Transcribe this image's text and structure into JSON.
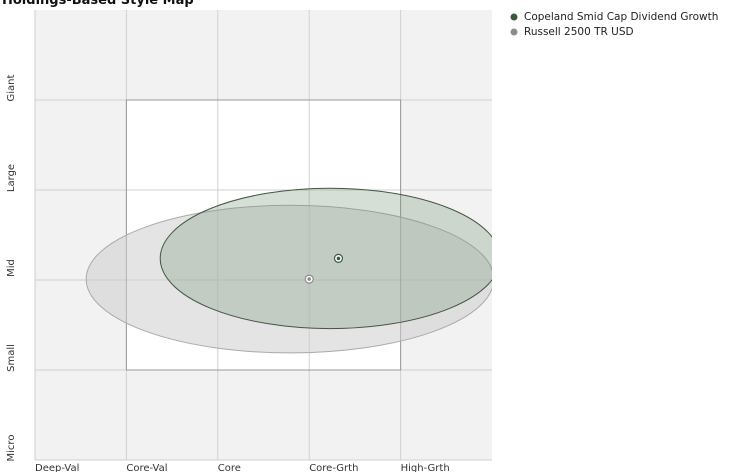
{
  "chart_data": {
    "type": "stylemap",
    "title": "Holdings-Based Style Map",
    "xlim": [
      0,
      500
    ],
    "ylim": [
      0,
      500
    ],
    "xticks": [
      {
        "value": 0,
        "label": "Deep-Val"
      },
      {
        "value": 100,
        "label": "Core-Val"
      },
      {
        "value": 200,
        "label": "Core"
      },
      {
        "value": 300,
        "label": "Core-Grth"
      },
      {
        "value": 400,
        "label": "High-Grth"
      }
    ],
    "yticks": [
      {
        "value": 0,
        "label": "Micro"
      },
      {
        "value": 100,
        "label": "Small"
      },
      {
        "value": 200,
        "label": "Mid"
      },
      {
        "value": 300,
        "label": "Large"
      },
      {
        "value": 400,
        "label": "Giant"
      }
    ],
    "grid": true,
    "series": [
      {
        "name": "Russell 2500 TR USD",
        "color": "#8c8c8c",
        "x": 300,
        "y": 201,
        "ellipse": {
          "x": 279,
          "y": 201,
          "rx": 223,
          "ry": 82
        }
      },
      {
        "name": "Copeland Smid Cap Dividend Growth",
        "color": "#3b5a3b",
        "x": 332,
        "y": 224,
        "ellipse": {
          "x": 323,
          "y": 224,
          "rx": 186,
          "ry": 78
        }
      }
    ]
  }
}
